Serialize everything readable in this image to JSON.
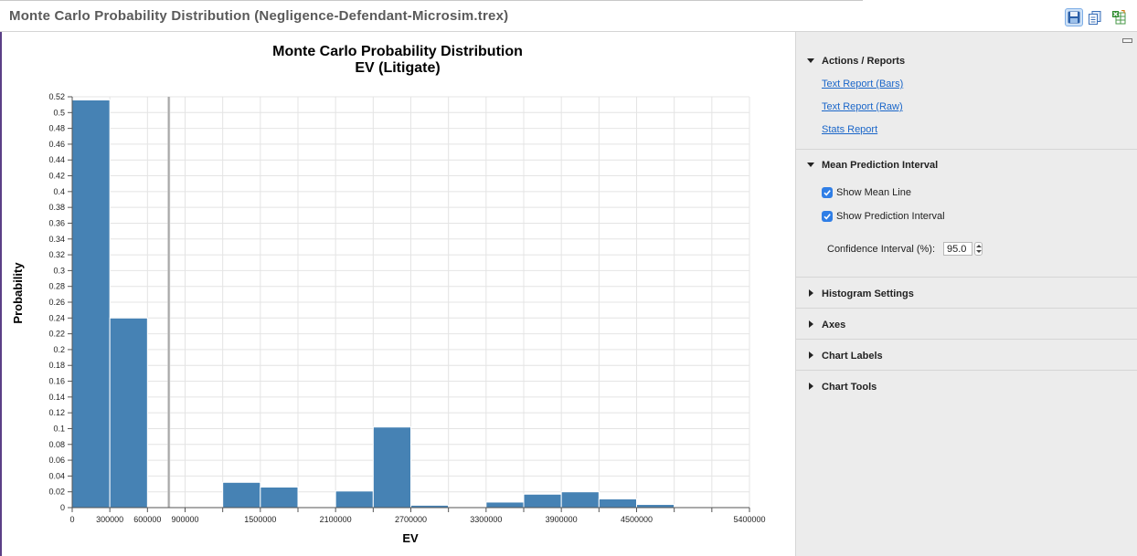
{
  "window": {
    "title": "Monte Carlo Probability Distribution (Negligence-Defendant-Microsim.trex)"
  },
  "toolbar": {
    "icons": [
      "save-icon",
      "copy-icon",
      "export-excel-icon"
    ],
    "accent": "#2f7ee6"
  },
  "panel": {
    "actions": {
      "title": "Actions / Reports",
      "links": [
        "Text Report (Bars)",
        "Text Report (Raw)",
        "Stats Report"
      ]
    },
    "mean_interval": {
      "title": "Mean Prediction Interval",
      "show_mean_line": "Show Mean Line",
      "show_mean_line_checked": true,
      "show_prediction_interval": "Show Prediction Interval",
      "show_prediction_interval_checked": true,
      "confidence_label": "Confidence Interval (%):",
      "confidence_value": "95.0"
    },
    "collapsed_sections": [
      "Histogram Settings",
      "Axes",
      "Chart Labels",
      "Chart Tools"
    ]
  },
  "chart_data": {
    "type": "bar",
    "title": "Monte Carlo Probability Distribution",
    "subtitle": "EV (Litigate)",
    "xlabel": "EV",
    "ylabel": "Probability",
    "xlim": [
      0,
      5400000
    ],
    "ylim": [
      0,
      0.52
    ],
    "y_tick_step": 0.02,
    "x_ticks": [
      0,
      300000,
      600000,
      900000,
      1500000,
      2100000,
      2700000,
      3300000,
      3900000,
      4500000,
      5400000
    ],
    "bin_width": 300000,
    "bins": [
      {
        "start": 0,
        "value": 0.516
      },
      {
        "start": 300000,
        "value": 0.24
      },
      {
        "start": 1200000,
        "value": 0.032
      },
      {
        "start": 1500000,
        "value": 0.026
      },
      {
        "start": 2100000,
        "value": 0.021
      },
      {
        "start": 2400000,
        "value": 0.102
      },
      {
        "start": 2700000,
        "value": 0.003
      },
      {
        "start": 3000000,
        "value": 0.001
      },
      {
        "start": 3300000,
        "value": 0.007
      },
      {
        "start": 3600000,
        "value": 0.017
      },
      {
        "start": 3900000,
        "value": 0.02
      },
      {
        "start": 4200000,
        "value": 0.011
      },
      {
        "start": 4500000,
        "value": 0.004
      },
      {
        "start": 4800000,
        "value": 0.001
      }
    ],
    "mean": 770000,
    "prediction_interval": [
      760000,
      780000
    ],
    "bar_color": "#4682b4",
    "mean_line_color": "#bdbdbd",
    "grid": true
  }
}
